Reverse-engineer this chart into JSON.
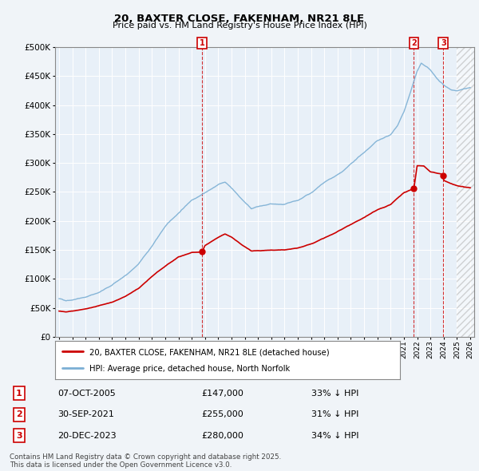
{
  "title": "20, BAXTER CLOSE, FAKENHAM, NR21 8LE",
  "subtitle": "Price paid vs. HM Land Registry's House Price Index (HPI)",
  "legend_entry1": "20, BAXTER CLOSE, FAKENHAM, NR21 8LE (detached house)",
  "legend_entry2": "HPI: Average price, detached house, North Norfolk",
  "footnote": "Contains HM Land Registry data © Crown copyright and database right 2025.\nThis data is licensed under the Open Government Licence v3.0.",
  "transactions": [
    {
      "num": 1,
      "date": "07-OCT-2005",
      "price": 147000,
      "pct": "33%",
      "dir": "↓",
      "label": "HPI",
      "x_year": 2005.77
    },
    {
      "num": 2,
      "date": "30-SEP-2021",
      "price": 255000,
      "pct": "31%",
      "dir": "↓",
      "label": "HPI",
      "x_year": 2021.75
    },
    {
      "num": 3,
      "date": "20-DEC-2023",
      "price": 280000,
      "pct": "34%",
      "dir": "↓",
      "label": "HPI",
      "x_year": 2023.97
    }
  ],
  "hpi_color": "#7bafd4",
  "price_color": "#cc0000",
  "background_color": "#f0f4f8",
  "plot_bg_color": "#e8f0f8",
  "ylim": [
    0,
    500000
  ],
  "xlim_start": 1994.7,
  "xlim_end": 2026.3,
  "yticks": [
    0,
    50000,
    100000,
    150000,
    200000,
    250000,
    300000,
    350000,
    400000,
    450000,
    500000
  ],
  "xticks": [
    1995,
    1996,
    1997,
    1998,
    1999,
    2000,
    2001,
    2002,
    2003,
    2004,
    2005,
    2006,
    2007,
    2008,
    2009,
    2010,
    2011,
    2012,
    2013,
    2014,
    2015,
    2016,
    2017,
    2018,
    2019,
    2020,
    2021,
    2022,
    2023,
    2024,
    2025,
    2026
  ],
  "hatch_start": 2025.0
}
